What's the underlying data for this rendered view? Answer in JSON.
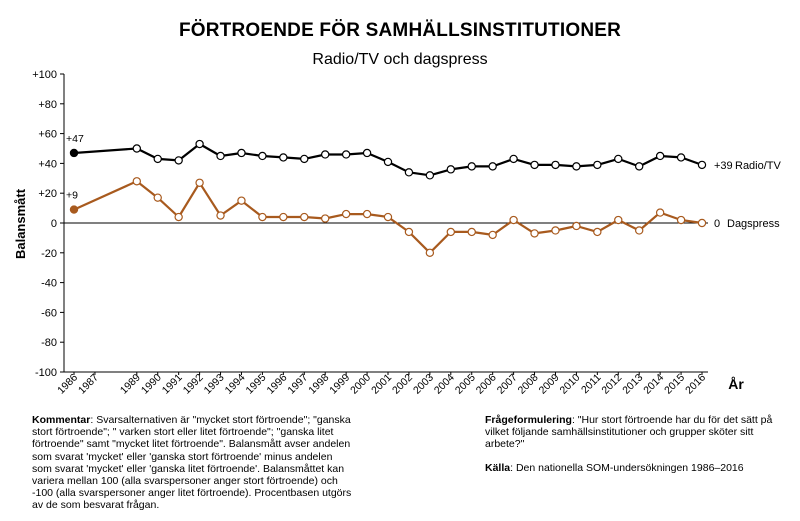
{
  "chart_data": {
    "type": "line",
    "title": "FÖRTROENDE FÖR SAMHÄLLSINSTITUTIONER",
    "subtitle": "Radio/TV och dagspress",
    "ylabel": "Balansmått",
    "xlabel": "År",
    "ylim": [
      -100,
      100
    ],
    "yticks": [
      100,
      80,
      60,
      40,
      20,
      0,
      -20,
      -40,
      -60,
      -80,
      -100
    ],
    "ytick_labels": [
      "+100",
      "+80",
      "+60",
      "+40",
      "+20",
      "0",
      "-20",
      "-40",
      "-60",
      "-80",
      "-100"
    ],
    "categories": [
      "1986",
      "1987",
      "1989",
      "1990",
      "1991",
      "1992",
      "1993",
      "1994",
      "1995",
      "1996",
      "1997",
      "1998",
      "1999",
      "2000",
      "2001",
      "2002",
      "2003",
      "2004",
      "2005",
      "2006",
      "2007",
      "2008",
      "2009",
      "2010",
      "2011",
      "2012",
      "2013",
      "2014",
      "2015",
      "2016"
    ],
    "series": [
      {
        "name": "Radio/TV",
        "color": "#000000",
        "x": [
          1986,
          1989,
          1990,
          1991,
          1992,
          1993,
          1994,
          1995,
          1996,
          1997,
          1998,
          1999,
          2000,
          2001,
          2002,
          2003,
          2004,
          2005,
          2006,
          2007,
          2008,
          2009,
          2010,
          2011,
          2012,
          2013,
          2014,
          2015,
          2016
        ],
        "values": [
          47,
          50,
          43,
          42,
          53,
          45,
          47,
          45,
          44,
          43,
          46,
          46,
          47,
          41,
          34,
          32,
          36,
          38,
          38,
          43,
          39,
          39,
          38,
          39,
          43,
          38,
          45,
          44,
          39
        ],
        "start_label": "+47",
        "end_label": "+39"
      },
      {
        "name": "Dagspress",
        "color": "#a85a1e",
        "x": [
          1986,
          1989,
          1990,
          1991,
          1992,
          1993,
          1994,
          1995,
          1996,
          1997,
          1998,
          1999,
          2000,
          2001,
          2002,
          2003,
          2004,
          2005,
          2006,
          2007,
          2008,
          2009,
          2010,
          2011,
          2012,
          2013,
          2014,
          2015,
          2016
        ],
        "values": [
          9,
          28,
          17,
          4,
          27,
          5,
          15,
          4,
          4,
          4,
          3,
          6,
          6,
          4,
          -6,
          -20,
          -6,
          -6,
          -8,
          2,
          -7,
          -5,
          -2,
          -6,
          2,
          -5,
          7,
          2,
          0
        ],
        "start_label": "+9",
        "end_label": "0"
      }
    ],
    "grid": false,
    "legend": "end-of-line labels"
  },
  "notes": {
    "comment_label": "Kommentar",
    "comment_text": ": Svarsalternativen är  \"mycket stort förtroende\"; \"ganska stort förtroende\"; \" varken stort eller litet förtroende\"; \"ganska litet förtroende\" samt \"mycket litet förtroende\". Balansmått  avser andelen som svarat 'mycket' eller 'ganska stort förtroende' minus andelen som svarat 'mycket' eller 'ganska litet förtroende'. Balansmåttet kan variera mellan 100 (alla svarspersoner anger stort förtroende) och -100 (alla svarspersoner anger litet förtroende). Procentbasen utgörs av de som besvarat frågan.",
    "question_label": "Frågeformulering",
    "question_text": ": \"Hur stort förtroende har du för det sätt på vilket följande samhällsinstitutioner och grupper sköter sitt arbete?\"",
    "source_label": "Källa",
    "source_text": ": Den nationella SOM-undersökningen 1986–2016"
  }
}
